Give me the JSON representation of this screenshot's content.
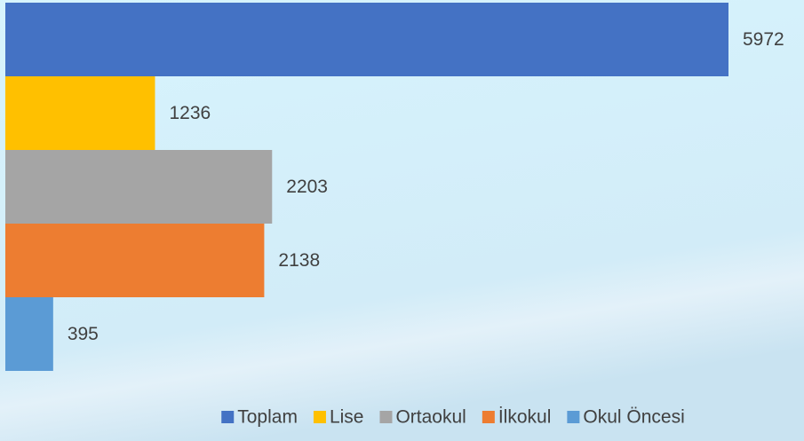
{
  "chart_data": {
    "type": "bar",
    "orientation": "horizontal",
    "legend": "bottom",
    "series": [
      {
        "name": "Toplam",
        "color": "#4472c4",
        "values": [
          5972
        ]
      },
      {
        "name": "Lise",
        "color": "#ffc000",
        "values": [
          1236
        ]
      },
      {
        "name": "Ortaokul",
        "color": "#a5a5a5",
        "values": [
          2203
        ]
      },
      {
        "name": "İlkokul",
        "color": "#ed7d31",
        "values": [
          2138
        ]
      },
      {
        "name": "Okul Öncesi",
        "color": "#5b9bd5",
        "values": [
          395
        ]
      }
    ]
  }
}
